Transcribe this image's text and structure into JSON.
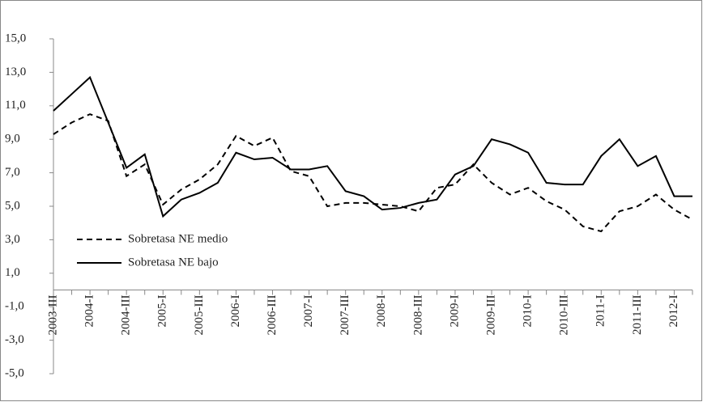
{
  "chart_data": {
    "type": "line",
    "categories": [
      "2003-III",
      null,
      "2004-I",
      null,
      "2004-III",
      null,
      "2005-I",
      null,
      "2005-III",
      null,
      "2006-I",
      null,
      "2006-III",
      null,
      "2007-I",
      null,
      "2007-III",
      null,
      "2008-I",
      null,
      "2008-III",
      null,
      "2009-I",
      null,
      "2009-III",
      null,
      "2010-I",
      null,
      "2010-III",
      null,
      "2011-I",
      null,
      "2011-III",
      null,
      "2012-I",
      null
    ],
    "series": [
      {
        "name": "Sobretasa NE medio",
        "color": "#000000",
        "line_style": "dashed",
        "values": [
          9.3,
          10.0,
          10.5,
          10.1,
          6.8,
          7.5,
          5.1,
          6.0,
          6.6,
          7.5,
          9.2,
          8.6,
          9.1,
          7.1,
          6.8,
          5.0,
          5.2,
          5.2,
          5.1,
          5.0,
          4.7,
          6.1,
          6.3,
          7.5,
          6.4,
          5.7,
          6.1,
          5.3,
          4.8,
          3.8,
          3.5,
          4.7,
          5.0,
          5.7,
          4.8,
          4.2
        ]
      },
      {
        "name": "Sobretasa NE bajo",
        "color": "#000000",
        "line_style": "solid",
        "values": [
          10.7,
          11.7,
          12.7,
          10.0,
          7.3,
          8.1,
          4.4,
          5.4,
          5.8,
          6.4,
          8.2,
          7.8,
          7.9,
          7.2,
          7.2,
          7.4,
          5.9,
          5.6,
          4.8,
          4.9,
          5.2,
          5.4,
          6.9,
          7.4,
          9.0,
          8.7,
          8.2,
          6.4,
          6.3,
          6.3,
          8.0,
          9.0,
          7.4,
          8.0,
          5.6,
          5.6
        ]
      }
    ],
    "ylim": [
      -5,
      15
    ],
    "yticks": [
      {
        "value": -5,
        "label": "-5,0"
      },
      {
        "value": -3,
        "label": "-3,0"
      },
      {
        "value": -1,
        "label": "-1,0"
      },
      {
        "value": 1,
        "label": "1,0"
      },
      {
        "value": 3,
        "label": "3,0"
      },
      {
        "value": 5,
        "label": "5,0"
      },
      {
        "value": 7,
        "label": "7,0"
      },
      {
        "value": 9,
        "label": "9,0"
      },
      {
        "value": 11,
        "label": "11,0"
      },
      {
        "value": 13,
        "label": "13,0"
      },
      {
        "value": 15,
        "label": "15,0"
      }
    ],
    "grid": false
  }
}
